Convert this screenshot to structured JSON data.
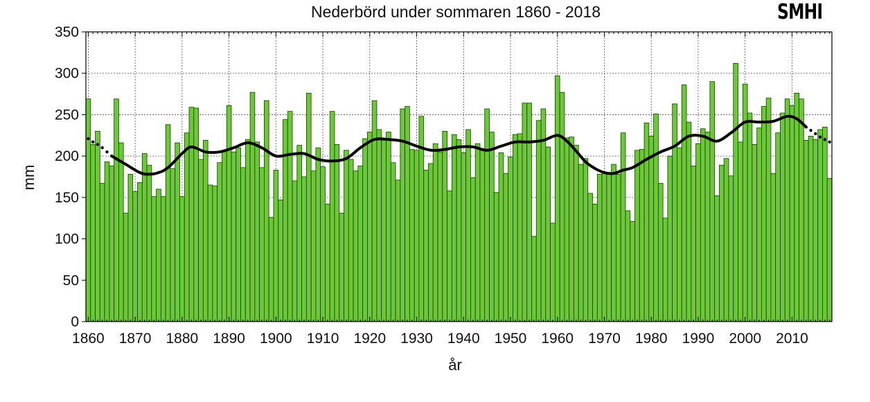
{
  "chart_data": {
    "type": "bar",
    "title": "Nederbörd under sommaren 1860 - 2018",
    "xlabel": "år",
    "ylabel": "mm",
    "xlim": [
      1859.5,
      2018.5
    ],
    "ylim": [
      0,
      350
    ],
    "x_ticks": [
      1860,
      1870,
      1880,
      1890,
      1900,
      1910,
      1920,
      1930,
      1940,
      1950,
      1960,
      1970,
      1980,
      1990,
      2000,
      2010
    ],
    "y_ticks": [
      0,
      50,
      100,
      150,
      200,
      250,
      300,
      350
    ],
    "grid": true,
    "bar_color": "#6cc838",
    "line_color": "#000000",
    "x": [
      1860,
      1861,
      1862,
      1863,
      1864,
      1865,
      1866,
      1867,
      1868,
      1869,
      1870,
      1871,
      1872,
      1873,
      1874,
      1875,
      1876,
      1877,
      1878,
      1879,
      1880,
      1881,
      1882,
      1883,
      1884,
      1885,
      1886,
      1887,
      1888,
      1889,
      1890,
      1891,
      1892,
      1893,
      1894,
      1895,
      1896,
      1897,
      1898,
      1899,
      1900,
      1901,
      1902,
      1903,
      1904,
      1905,
      1906,
      1907,
      1908,
      1909,
      1910,
      1911,
      1912,
      1913,
      1914,
      1915,
      1916,
      1917,
      1918,
      1919,
      1920,
      1921,
      1922,
      1923,
      1924,
      1925,
      1926,
      1927,
      1928,
      1929,
      1930,
      1931,
      1932,
      1933,
      1934,
      1935,
      1936,
      1937,
      1938,
      1939,
      1940,
      1941,
      1942,
      1943,
      1944,
      1945,
      1946,
      1947,
      1948,
      1949,
      1950,
      1951,
      1952,
      1953,
      1954,
      1955,
      1956,
      1957,
      1958,
      1959,
      1960,
      1961,
      1962,
      1963,
      1964,
      1965,
      1966,
      1967,
      1968,
      1969,
      1970,
      1971,
      1972,
      1973,
      1974,
      1975,
      1976,
      1977,
      1978,
      1979,
      1980,
      1981,
      1982,
      1983,
      1984,
      1985,
      1986,
      1987,
      1988,
      1989,
      1990,
      1991,
      1992,
      1993,
      1994,
      1995,
      1996,
      1997,
      1998,
      1999,
      2000,
      2001,
      2002,
      2003,
      2004,
      2005,
      2006,
      2007,
      2008,
      2009,
      2010,
      2011,
      2012,
      2013,
      2014,
      2015,
      2016,
      2017,
      2018
    ],
    "values": [
      269,
      214,
      230,
      167,
      193,
      188,
      269,
      216,
      131,
      178,
      157,
      168,
      203,
      189,
      151,
      160,
      151,
      238,
      185,
      216,
      151,
      228,
      259,
      258,
      196,
      219,
      165,
      164,
      192,
      206,
      261,
      205,
      210,
      186,
      220,
      277,
      217,
      186,
      267,
      126,
      183,
      147,
      244,
      254,
      170,
      213,
      175,
      276,
      182,
      210,
      187,
      142,
      254,
      214,
      131,
      207,
      196,
      182,
      188,
      221,
      229,
      267,
      232,
      220,
      229,
      192,
      171,
      257,
      260,
      208,
      207,
      248,
      183,
      191,
      215,
      205,
      230,
      158,
      226,
      220,
      204,
      232,
      174,
      215,
      207,
      257,
      229,
      156,
      204,
      179,
      199,
      226,
      227,
      264,
      264,
      103,
      243,
      257,
      211,
      119,
      297,
      277,
      222,
      223,
      213,
      190,
      197,
      155,
      142,
      178,
      180,
      180,
      190,
      178,
      228,
      134,
      121,
      207,
      208,
      240,
      224,
      251,
      167,
      125,
      200,
      263,
      210,
      286,
      241,
      188,
      215,
      233,
      229,
      290,
      152,
      189,
      197,
      176,
      312,
      217,
      287,
      252,
      214,
      234,
      260,
      270,
      179,
      228,
      252,
      269,
      261,
      276,
      269,
      219,
      224,
      220,
      232,
      235,
      173
    ],
    "trend": {
      "x": [
        1865,
        1868,
        1871,
        1873,
        1875,
        1877,
        1880,
        1882,
        1885,
        1888,
        1891,
        1894,
        1897,
        1900,
        1903,
        1906,
        1909,
        1912,
        1915,
        1918,
        1921,
        1924,
        1927,
        1930,
        1933,
        1936,
        1939,
        1942,
        1945,
        1948,
        1951,
        1954,
        1957,
        1960,
        1962,
        1964,
        1966,
        1968,
        1970,
        1972,
        1974,
        1976,
        1979,
        1982,
        1985,
        1988,
        1991,
        1994,
        1997,
        2000,
        2003,
        2006,
        2009,
        2011,
        2013
      ],
      "y": [
        200,
        190,
        180,
        178,
        180,
        186,
        203,
        211,
        205,
        205,
        210,
        216,
        210,
        200,
        202,
        203,
        196,
        194,
        197,
        210,
        220,
        220,
        218,
        212,
        207,
        208,
        211,
        211,
        207,
        212,
        217,
        217,
        219,
        225,
        218,
        206,
        193,
        185,
        180,
        179,
        183,
        186,
        196,
        205,
        212,
        224,
        224,
        218,
        228,
        241,
        241,
        242,
        248,
        245,
        235
      ]
    },
    "trend_dotted_start": {
      "x": [
        1860,
        1861,
        1862,
        1863,
        1864,
        1865
      ],
      "y": [
        221,
        217,
        214,
        210,
        205,
        200
      ]
    },
    "trend_dotted_end": {
      "x": [
        2013,
        2014,
        2015,
        2016,
        2017,
        2018
      ],
      "y": [
        235,
        231,
        227,
        223,
        220,
        217
      ]
    }
  },
  "logo_text": "SMHI"
}
